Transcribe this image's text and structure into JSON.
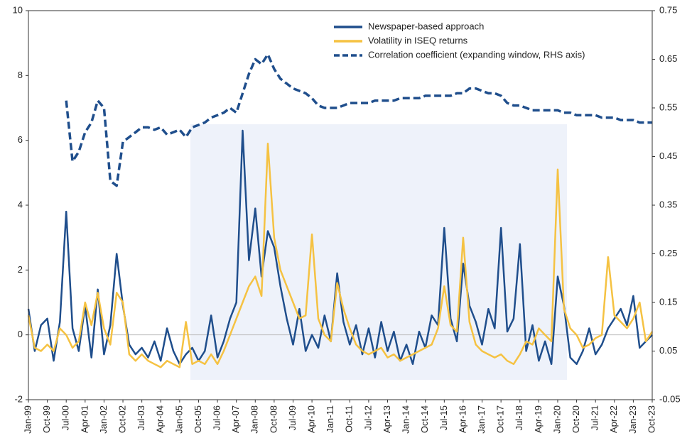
{
  "chart_data": {
    "type": "line",
    "categories": [
      "Jan-99",
      null,
      null,
      "Oct-99",
      null,
      null,
      "Jul-00",
      null,
      null,
      "Apr-01",
      null,
      null,
      "Jan-02",
      null,
      null,
      "Oct-02",
      null,
      null,
      "Jul-03",
      null,
      null,
      "Apr-04",
      null,
      null,
      "Jan-05",
      null,
      null,
      "Oct-05",
      null,
      null,
      "Jul-06",
      null,
      null,
      "Apr-07",
      null,
      null,
      "Jan-08",
      null,
      null,
      "Oct-08",
      null,
      null,
      "Jul-09",
      null,
      null,
      "Apr-10",
      null,
      null,
      "Jan-11",
      null,
      null,
      "Oct-11",
      null,
      null,
      "Jul-12",
      null,
      null,
      "Apr-13",
      null,
      null,
      "Jan-14",
      null,
      null,
      "Oct-14",
      null,
      null,
      "Jul-15",
      null,
      null,
      "Apr-16",
      null,
      null,
      "Jan-17",
      null,
      null,
      "Oct-17",
      null,
      null,
      "Jul-18",
      null,
      null,
      "Apr-19",
      null,
      null,
      "Jan-20",
      null,
      null,
      "Oct-20",
      null,
      null,
      "Jul-21",
      null,
      null,
      "Apr-22",
      null,
      null,
      "Jan-23",
      null,
      null,
      "Oct-23"
    ],
    "series": [
      {
        "name": "Newspaper-based approach",
        "color": "#1f4e8c",
        "axis": "y",
        "dashed": false,
        "values": [
          0.8,
          -0.5,
          0.3,
          0.5,
          -0.8,
          0.4,
          3.8,
          0.2,
          -0.5,
          0.9,
          -0.7,
          1.4,
          -0.6,
          0.3,
          2.5,
          0.9,
          -0.3,
          -0.6,
          -0.4,
          -0.7,
          -0.2,
          -0.8,
          0.2,
          -0.5,
          -0.9,
          -0.6,
          -0.4,
          -0.8,
          -0.5,
          0.6,
          -0.7,
          -0.2,
          0.5,
          1.0,
          6.3,
          2.3,
          3.9,
          1.8,
          3.2,
          2.7,
          1.5,
          0.5,
          -0.3,
          0.8,
          -0.5,
          0.0,
          -0.4,
          0.6,
          -0.2,
          1.9,
          0.4,
          -0.3,
          0.3,
          -0.6,
          0.2,
          -0.7,
          0.4,
          -0.5,
          0.1,
          -0.8,
          -0.3,
          -0.9,
          0.1,
          -0.4,
          0.6,
          0.3,
          3.3,
          0.5,
          -0.2,
          2.2,
          0.9,
          0.4,
          -0.3,
          0.8,
          0.2,
          3.3,
          0.1,
          0.5,
          2.8,
          -0.5,
          0.3,
          -0.8,
          -0.2,
          -0.9,
          1.8,
          0.9,
          -0.7,
          -0.9,
          -0.5,
          0.2,
          -0.6,
          -0.3,
          0.2,
          0.5,
          0.8,
          0.3,
          1.2,
          -0.4,
          -0.2,
          0.0
        ]
      },
      {
        "name": "Volatility in ISEQ returns",
        "color": "#f5c242",
        "axis": "y",
        "dashed": false,
        "values": [
          0.6,
          -0.4,
          -0.5,
          -0.3,
          -0.5,
          0.2,
          0.0,
          -0.4,
          -0.2,
          1.0,
          0.3,
          1.3,
          0.2,
          -0.3,
          1.3,
          1.0,
          -0.6,
          -0.8,
          -0.6,
          -0.8,
          -0.9,
          -1.0,
          -0.8,
          -0.9,
          -1.0,
          0.4,
          -0.9,
          -0.8,
          -0.9,
          -0.6,
          -0.9,
          -0.5,
          0.0,
          0.5,
          1.0,
          1.5,
          1.8,
          1.2,
          5.9,
          3.0,
          2.0,
          1.5,
          1.0,
          0.5,
          0.6,
          3.1,
          0.5,
          0.0,
          -0.2,
          1.6,
          0.8,
          0.2,
          -0.3,
          -0.5,
          -0.6,
          -0.5,
          -0.4,
          -0.7,
          -0.6,
          -0.8,
          -0.7,
          -0.6,
          -0.5,
          -0.4,
          -0.3,
          0.2,
          1.5,
          0.3,
          0.1,
          3.0,
          0.4,
          -0.3,
          -0.5,
          -0.6,
          -0.7,
          -0.6,
          -0.8,
          -0.9,
          -0.6,
          -0.2,
          -0.3,
          0.2,
          0.0,
          -0.2,
          5.1,
          0.8,
          0.2,
          0.0,
          -0.4,
          -0.3,
          -0.1,
          0.0,
          2.4,
          0.6,
          0.4,
          0.2,
          0.5,
          1.0,
          -0.2,
          0.1
        ]
      },
      {
        "name": "Correlation coefficient (expanding window, RHS axis)",
        "color": "#1f4e8c",
        "axis": "y2",
        "dashed": true,
        "values": [
          null,
          null,
          null,
          null,
          null,
          null,
          0.565,
          0.44,
          0.46,
          0.5,
          0.52,
          0.565,
          0.55,
          0.4,
          0.39,
          0.48,
          0.49,
          0.5,
          0.51,
          0.51,
          0.505,
          0.51,
          0.495,
          0.5,
          0.505,
          0.49,
          0.51,
          0.515,
          0.52,
          0.53,
          0.535,
          0.54,
          0.55,
          0.54,
          0.58,
          0.62,
          0.65,
          0.64,
          0.66,
          0.63,
          0.61,
          0.6,
          0.59,
          0.585,
          0.58,
          0.57,
          0.555,
          0.55,
          0.55,
          0.55,
          0.555,
          0.56,
          0.56,
          0.56,
          0.56,
          0.565,
          0.565,
          0.565,
          0.565,
          0.57,
          0.57,
          0.57,
          0.57,
          0.575,
          0.575,
          0.575,
          0.575,
          0.575,
          0.58,
          0.58,
          0.59,
          0.59,
          0.585,
          0.58,
          0.58,
          0.575,
          0.56,
          0.555,
          0.555,
          0.55,
          0.545,
          0.545,
          0.545,
          0.545,
          0.545,
          0.54,
          0.54,
          0.535,
          0.535,
          0.535,
          0.535,
          0.53,
          0.53,
          0.53,
          0.525,
          0.525,
          0.525,
          0.52,
          0.52,
          0.52
        ]
      }
    ],
    "ylim": [
      -2,
      10
    ],
    "yticks": [
      -2,
      0,
      2,
      4,
      6,
      8,
      10
    ],
    "y2lim": [
      -0.05,
      0.75
    ],
    "y2ticks": [
      -0.05,
      0.05,
      0.15,
      0.25,
      0.35,
      0.45,
      0.55,
      0.65,
      0.75
    ],
    "legend": "top-right",
    "zero_line": true
  }
}
